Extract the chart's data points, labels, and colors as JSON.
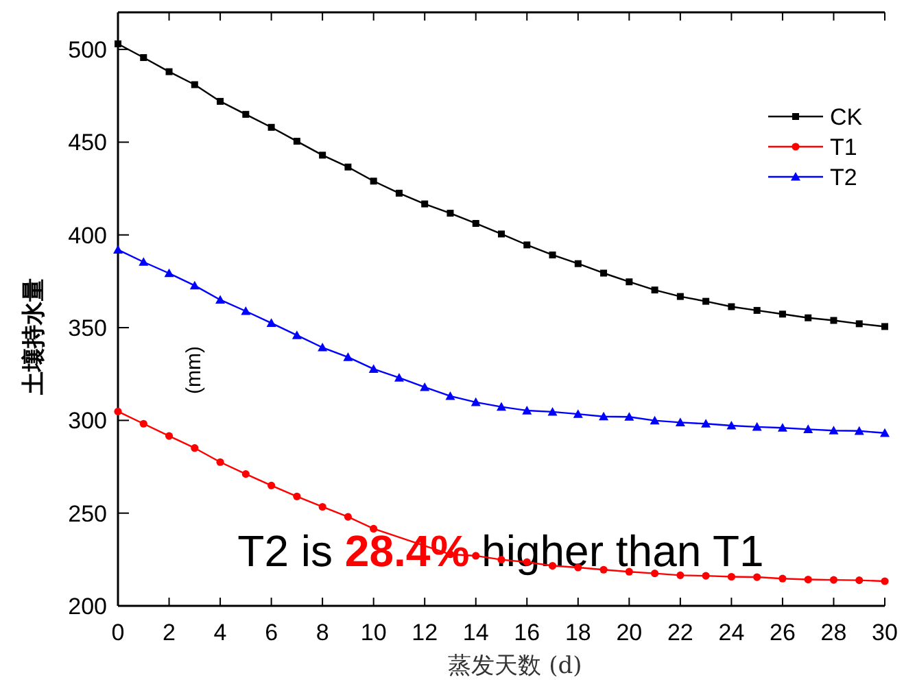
{
  "chart_data": {
    "type": "line",
    "xlabel": "蒸发天数 (d)",
    "ylabel": "土壤持水量",
    "x": [
      0,
      1,
      2,
      3,
      4,
      5,
      6,
      7,
      8,
      9,
      10,
      11,
      12,
      13,
      14,
      15,
      16,
      17,
      18,
      19,
      20,
      21,
      22,
      23,
      24,
      25,
      26,
      27,
      28,
      29,
      30
    ],
    "series": [
      {
        "name": "CK",
        "color": "#000000",
        "marker": "square",
        "values": [
          503,
          495.6,
          488,
          481,
          472,
          465,
          458,
          450.5,
          443,
          436.6,
          429,
          422.5,
          416.7,
          411.7,
          406.2,
          400.5,
          394.6,
          389.2,
          384.5,
          379.4,
          374.7,
          370.3,
          366.8,
          364.2,
          361.3,
          359.3,
          357.3,
          355.3,
          353.9,
          352.1,
          350.6
        ]
      },
      {
        "name": "T1",
        "color": "#ff0000",
        "marker": "circle",
        "values": [
          304.8,
          298.2,
          291.6,
          285.1,
          277.5,
          271.1,
          264.9,
          259,
          253.4,
          248,
          241.6,
          null,
          null,
          227.8,
          227,
          224.9,
          223.6,
          221.6,
          220.7,
          219.5,
          218.4,
          217.5,
          216.5,
          216.2,
          215.7,
          215.5,
          214.7,
          214.2,
          214,
          213.8,
          213.3
        ]
      },
      {
        "name": "T2",
        "color": "#0000ff",
        "marker": "triangle",
        "values": [
          392,
          385.4,
          379.3,
          372.7,
          365,
          358.9,
          352.5,
          345.9,
          339.3,
          334.1,
          327.7,
          323,
          317.9,
          313.1,
          309.8,
          307.3,
          305.3,
          304.6,
          303.4,
          302.1,
          301.9,
          299.9,
          298.9,
          298.2,
          297.2,
          296.5,
          296,
          295.2,
          294.5,
          294.3,
          293.2
        ]
      }
    ],
    "xlim": [
      0,
      30
    ],
    "xticks": [
      0,
      2,
      4,
      6,
      8,
      10,
      12,
      14,
      16,
      18,
      20,
      22,
      24,
      26,
      28,
      30
    ],
    "ylim": [
      200,
      520
    ],
    "yticks": [
      200,
      250,
      300,
      350,
      400,
      450,
      500
    ],
    "legend": "top right",
    "line_style": "solid",
    "annotations": [
      "(mm)",
      "T2 is **28.4%** higher than T1"
    ]
  }
}
